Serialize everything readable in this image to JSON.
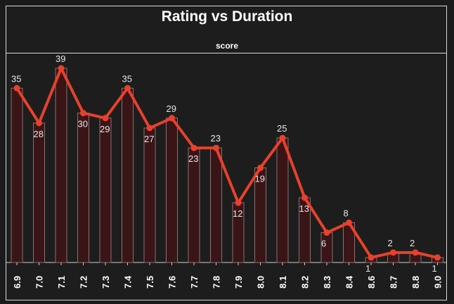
{
  "chart_data": {
    "type": "bar",
    "title": "Rating vs Duration",
    "subtitle": "score",
    "xlabel": "",
    "ylabel": "",
    "categories": [
      "6.9",
      "7.0",
      "7.1",
      "7.2",
      "7.3",
      "7.4",
      "7.5",
      "7.6",
      "7.7",
      "7.8",
      "7.9",
      "8.0",
      "8.1",
      "8.2",
      "8.3",
      "8.4",
      "8.6",
      "8.7",
      "8.8",
      "9.0"
    ],
    "series": [
      {
        "values": [
          35,
          28,
          39,
          30,
          29,
          35,
          27,
          29,
          23,
          23,
          12,
          19,
          25,
          13,
          6,
          8,
          1,
          2,
          2,
          1
        ]
      }
    ],
    "line_overlay": true,
    "data_labels": true,
    "legend": "none",
    "grid": false,
    "colors": {
      "bar_fill": "#3a1518",
      "bar_stroke": "#8a7070",
      "line": "#e8412b",
      "labels": "#e6e6e6"
    }
  }
}
